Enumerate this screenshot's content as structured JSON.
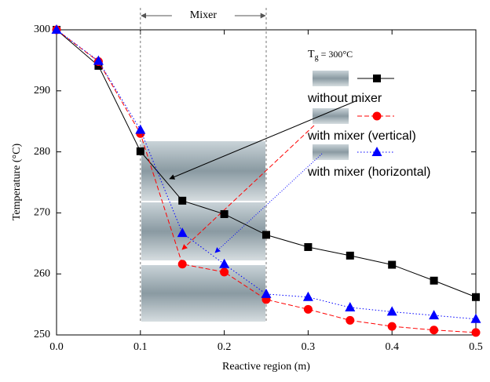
{
  "chart_data": {
    "type": "line",
    "x_label": "Reactive region (m)",
    "y_label": "Temperature (°C)",
    "annotation": "Mixer",
    "mixer_region": [
      0.1,
      0.25
    ],
    "gas_temperature": {
      "symbol": "T",
      "subscript": "g",
      "text": " = 300°C"
    },
    "x": [
      0,
      0.05,
      0.1,
      0.15,
      0.2,
      0.25,
      0.3,
      0.35,
      0.4,
      0.45,
      0.5
    ],
    "series": [
      {
        "name": "without mixer",
        "color": "#000000",
        "marker": "square",
        "dash": "solid",
        "values": [
          300,
          294.1,
          280.1,
          272,
          269.8,
          266.4,
          264.4,
          263,
          261.5,
          258.9,
          256.2
        ]
      },
      {
        "name": "with mixer (vertical)",
        "color": "#ff0000",
        "marker": "circle",
        "dash": "dashed",
        "values": [
          300,
          294.8,
          283,
          261.6,
          260.3,
          255.8,
          254.2,
          252.4,
          251.4,
          250.8,
          250.4
        ]
      },
      {
        "name": "with mixer (horizontal)",
        "color": "#0000ff",
        "marker": "triangle",
        "dash": "dotted",
        "values": [
          300,
          294.9,
          283.6,
          266.7,
          261.6,
          256.7,
          256.2,
          254.5,
          253.8,
          253.2,
          252.6
        ]
      }
    ],
    "xlim": [
      0,
      0.5
    ],
    "xticks": [
      {
        "value": 0,
        "label": "0.0"
      },
      0.1,
      0.2,
      0.3,
      0.4,
      0.5
    ],
    "ylim": [
      250,
      300
    ],
    "yticks": [
      250,
      260,
      270,
      280,
      290,
      300
    ]
  }
}
